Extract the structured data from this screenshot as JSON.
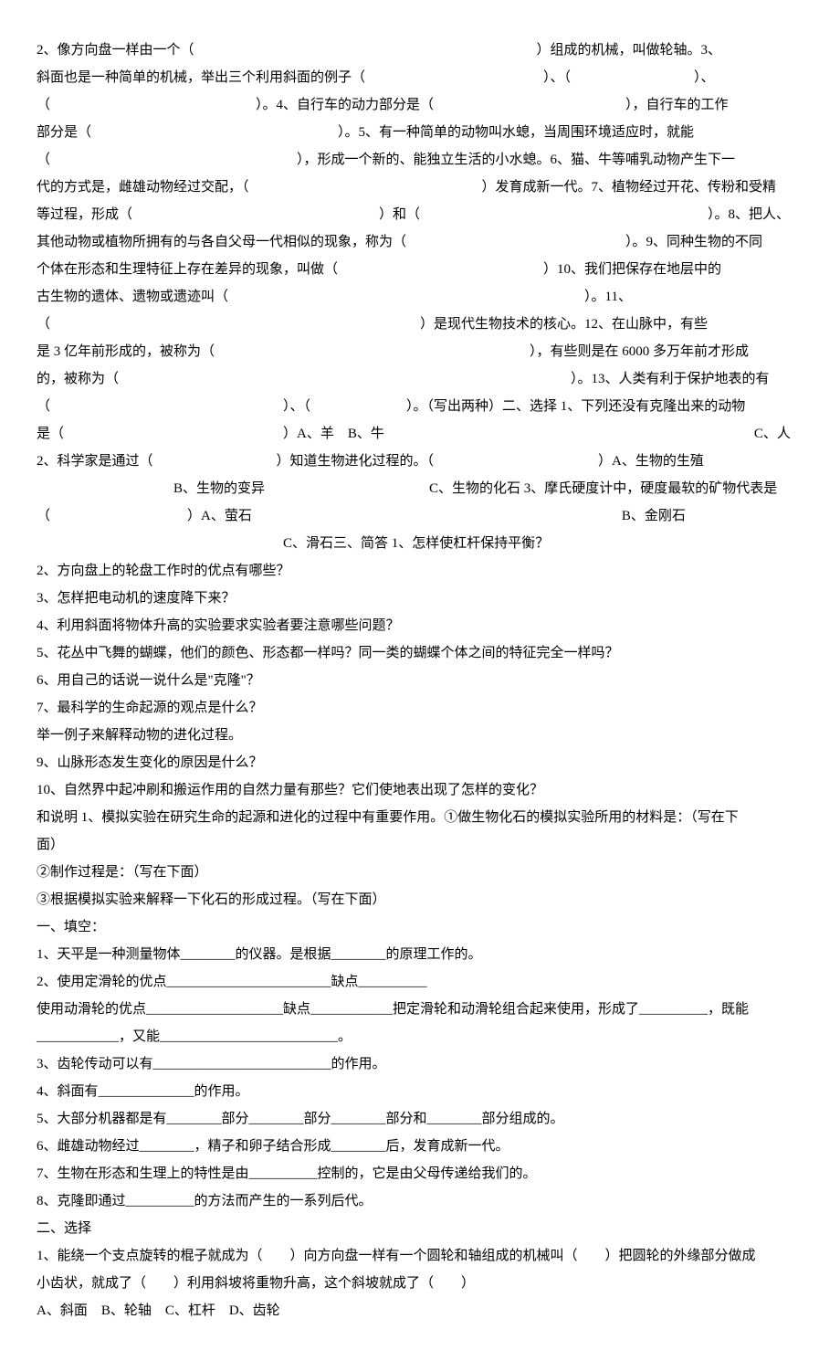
{
  "lines": [
    "2、像方向盘一样由一个（　　　　　　　　　　　　　　　　　　　　　　　　　）组成的机械，叫做轮轴。3、",
    "斜面也是一种简单的机械，举出三个利用斜面的例子（　　　　　　　　　　　　　）、（　　　　　　　　　）、",
    "（　　　　　　　　　　　　　　　）。4、自行车的动力部分是（　　　　　　　　　　　　　　），自行车的工作",
    "部分是（　　　　　　　　　　　　　　　　　　）。5、有一种简单的动物叫水螅，当周围环境适应时，就能",
    "（　　　　　　　　　　　　　　　　　　），形成一个新的、能独立生活的小水螅。6、猫、牛等哺乳动物产生下一",
    "代的方式是，雌雄动物经过交配，（　　　　　　　　　　　　　　　　　）发育成新一代。7、植物经过开花、传粉和受精",
    "等过程，形成（　　　　　　　　　　　　　　　　　　）和（　　　　　　　　　　　　　　　　　　　　　）。8、把人、",
    "其他动物或植物所拥有的与各自父母一代相似的现象，称为（　　　　　　　　　　　　　　　　）。9、同种生物的不同",
    "个体在形态和生理特征上存在差异的现象，叫做（　　　　　　　　　　　　　　　）10、我们把保存在地层中的",
    "古生物的遗体、遗物或遗迹叫（　　　　　　　　　　　　　　　　　　　　　　　　　　）。11、",
    "（　　　　　　　　　　　　　　　　　　　　　　　　　　　）是现代生物技术的核心。12、在山脉中，有些",
    "是 3 亿年前形成的，被称为（　　　　　　　　　　　　　　　　　　　　　　　），有些则是在 6000 多万年前才形成",
    "的，被称为（　　　　　　　　　　　　　　　　　　　　　　　　　　　　　　　　　）。13、人类有利于保护地表的有",
    "（　　　　　　　　　　　　　　　　　）、（　　　　　　　）。（写出两种）二、选择 1、下列还没有克隆出来的动物",
    "是（　　　　　　　　　　　　　　　　）A、羊　B、牛　　　　　　　　　　　　　　　　　　　　　　　　　　　C、人",
    "2、科学家是通过（　　　　　　　　　）知道生物进化过程的。（　　　　　　　　　　　　）A、生物的生殖",
    "　　　　　　　　　　B、生物的变异　　　　　　　　　　　　C、生物的化石 3、摩氏硬度计中，硬度最软的矿物代表是",
    "（　　　　　　　　　　）A、萤石　　　　　　　　　　　　　　　　　　　　　　　　　　　B、金刚石",
    "　　　　　　　　　　　　　　　　　　C、滑石三、简答 1、怎样使杠杆保持平衡？",
    "2、方向盘上的轮盘工作时的优点有哪些？",
    "3、怎样把电动机的速度降下来？",
    "4、利用斜面将物体升高的实验要求实验者要注意哪些问题？",
    "5、花丛中飞舞的蝴蝶，他们的颜色、形态都一样吗？同一类的蝴蝶个体之间的特征完全一样吗？",
    "6、用自己的话说一说什么是\"克隆\"？",
    "7、最科学的生命起源的观点是什么？",
    "举一例子来解释动物的进化过程。",
    "9、山脉形态发生变化的原因是什么？",
    "10、自然界中起冲刷和搬运作用的自然力量有那些？它们使地表出现了怎样的变化？",
    "和说明 1、模拟实验在研究生命的起源和进化的过程中有重要作用。①做生物化石的模拟实验所用的材料是：（写在下",
    "面）",
    "②制作过程是：（写在下面）",
    "③根据模拟实验来解释一下化石的形成过程。（写在下面）",
    "一、填空：",
    "1、天平是一种测量物体________的仪器。是根据________的原理工作的。",
    "2、使用定滑轮的优点________________________缺点__________",
    "使用动滑轮的优点____________________缺点____________把定滑轮和动滑轮组合起来使用，形成了__________，既能",
    "____________，又能__________________________。",
    "3、齿轮传动可以有__________________________的作用。",
    "4、斜面有______________的作用。",
    "5、大部分机器都是有________部分________部分________部分和________部分组成的。",
    "6、雌雄动物经过________，精子和卵子结合形成________后，发育成新一代。",
    "7、生物在形态和生理上的特性是由__________控制的，它是由父母传递给我们的。",
    "8、克隆即通过__________的方法而产生的一系列后代。",
    "二、选择",
    "1、能绕一个支点旋转的棍子就成为（　　）向方向盘一样有一个圆轮和轴组成的机械叫（　　）把圆轮的外缘部分做成",
    "小齿状，就成了（　　）利用斜坡将重物升高，这个斜坡就成了（　　）",
    "A、斜面　B、轮轴　C、杠杆　D、齿轮"
  ]
}
